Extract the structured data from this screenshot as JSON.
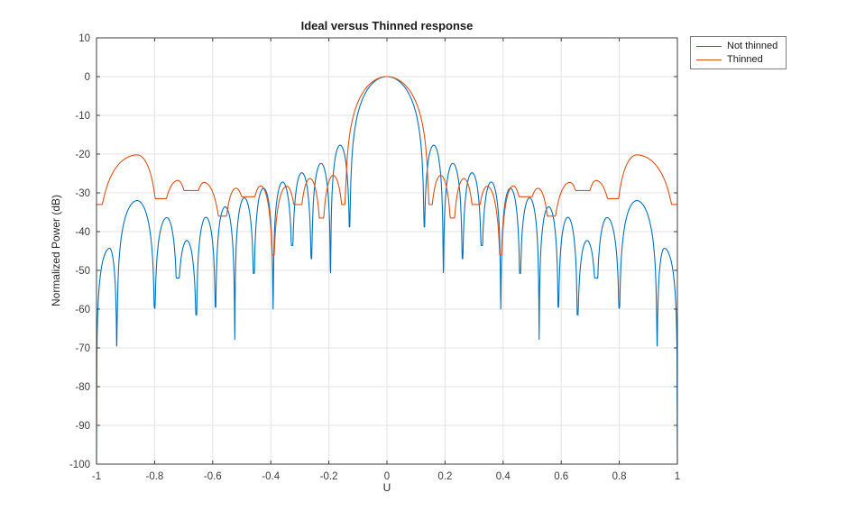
{
  "figure": {
    "background": "#ffffff"
  },
  "chart_data": {
    "type": "line",
    "title": "Ideal versus Thinned response",
    "xlabel": "U",
    "ylabel": "Normalized Power (dB)",
    "xlim": [
      -1,
      1
    ],
    "ylim": [
      -100,
      10
    ],
    "grid": true,
    "legend_position": "northeast-outside",
    "x_ticks": [
      -1,
      -0.8,
      -0.6,
      -0.4,
      -0.2,
      0,
      0.2,
      0.4,
      0.6,
      0.8,
      1
    ],
    "x_tick_labels": [
      "-1",
      "-0.8",
      "-0.6",
      "-0.4",
      "-0.2",
      "0",
      "0.2",
      "0.4",
      "0.6",
      "0.8",
      "1"
    ],
    "y_ticks": [
      10,
      0,
      -10,
      -20,
      -30,
      -40,
      -50,
      -60,
      -70,
      -80,
      -90,
      -100
    ],
    "y_tick_labels": [
      "10",
      "0",
      "-10",
      "-20",
      "-30",
      "-40",
      "-50",
      "-60",
      "-70",
      "-80",
      "-90",
      "-100"
    ],
    "series": [
      {
        "name": "Not thinned",
        "color": "#0072BD",
        "points": [
          [
            -1.0,
            -100
          ],
          [
            -0.955,
            -44.3
          ],
          [
            -0.93,
            -69.5
          ],
          [
            -0.86,
            -32.0
          ],
          [
            -0.8,
            -59.8
          ],
          [
            -0.758,
            -36.4
          ],
          [
            -0.722,
            -52.0
          ],
          [
            -0.689,
            -42.3
          ],
          [
            -0.656,
            -61.5
          ],
          [
            -0.623,
            -36.3
          ],
          [
            -0.59,
            -59.5
          ],
          [
            -0.557,
            -33.6
          ],
          [
            -0.524,
            -67.8
          ],
          [
            -0.491,
            -31.3
          ],
          [
            -0.458,
            -50.8
          ],
          [
            -0.425,
            -28.8
          ],
          [
            -0.392,
            -60.0
          ],
          [
            -0.359,
            -27.2
          ],
          [
            -0.326,
            -43.6
          ],
          [
            -0.293,
            -24.8
          ],
          [
            -0.26,
            -47.0
          ],
          [
            -0.227,
            -22.4
          ],
          [
            -0.194,
            -50.6
          ],
          [
            -0.161,
            -17.7
          ],
          [
            -0.128,
            -38.8
          ],
          [
            0.0,
            0.0
          ],
          [
            0.128,
            -38.8
          ],
          [
            0.161,
            -17.7
          ],
          [
            0.194,
            -50.6
          ],
          [
            0.227,
            -22.4
          ],
          [
            0.26,
            -47.0
          ],
          [
            0.293,
            -24.8
          ],
          [
            0.326,
            -43.6
          ],
          [
            0.359,
            -27.2
          ],
          [
            0.392,
            -60.0
          ],
          [
            0.425,
            -28.8
          ],
          [
            0.458,
            -50.8
          ],
          [
            0.491,
            -31.3
          ],
          [
            0.524,
            -67.8
          ],
          [
            0.557,
            -33.6
          ],
          [
            0.59,
            -59.5
          ],
          [
            0.623,
            -36.3
          ],
          [
            0.656,
            -61.5
          ],
          [
            0.689,
            -42.3
          ],
          [
            0.722,
            -52.0
          ],
          [
            0.758,
            -36.4
          ],
          [
            0.8,
            -59.8
          ],
          [
            0.86,
            -32.0
          ],
          [
            0.93,
            -69.5
          ],
          [
            0.955,
            -44.3
          ],
          [
            1.0,
            -100
          ]
        ]
      },
      {
        "name": "Thinned",
        "color": "#D95319",
        "points": [
          [
            -1.0,
            -33.0
          ],
          [
            -0.86,
            -20.2
          ],
          [
            -0.785,
            -31.5
          ],
          [
            -0.72,
            -26.8
          ],
          [
            -0.675,
            -29.4
          ],
          [
            -0.63,
            -27.3
          ],
          [
            -0.565,
            -36.0
          ],
          [
            -0.52,
            -28.8
          ],
          [
            -0.475,
            -31.0
          ],
          [
            -0.435,
            -28.2
          ],
          [
            -0.392,
            -46.0
          ],
          [
            -0.345,
            -28.3
          ],
          [
            -0.305,
            -33.0
          ],
          [
            -0.265,
            -26.3
          ],
          [
            -0.225,
            -36.5
          ],
          [
            -0.185,
            -25.5
          ],
          [
            -0.145,
            -33.0
          ],
          [
            0.0,
            0.0
          ],
          [
            0.145,
            -33.0
          ],
          [
            0.185,
            -25.5
          ],
          [
            0.225,
            -36.5
          ],
          [
            0.265,
            -26.3
          ],
          [
            0.305,
            -33.0
          ],
          [
            0.345,
            -28.3
          ],
          [
            0.392,
            -46.0
          ],
          [
            0.435,
            -28.2
          ],
          [
            0.475,
            -31.0
          ],
          [
            0.52,
            -28.8
          ],
          [
            0.565,
            -36.0
          ],
          [
            0.63,
            -27.3
          ],
          [
            0.675,
            -29.4
          ],
          [
            0.72,
            -26.8
          ],
          [
            0.785,
            -31.5
          ],
          [
            0.86,
            -20.2
          ],
          [
            1.0,
            -33.0
          ]
        ]
      }
    ]
  },
  "axes_style": {
    "grid_color": "#e3e3e3",
    "box_color": "#3c3c3c",
    "tick_color": "#3c3c3c",
    "tick_label_color": "#3c3c3c"
  }
}
